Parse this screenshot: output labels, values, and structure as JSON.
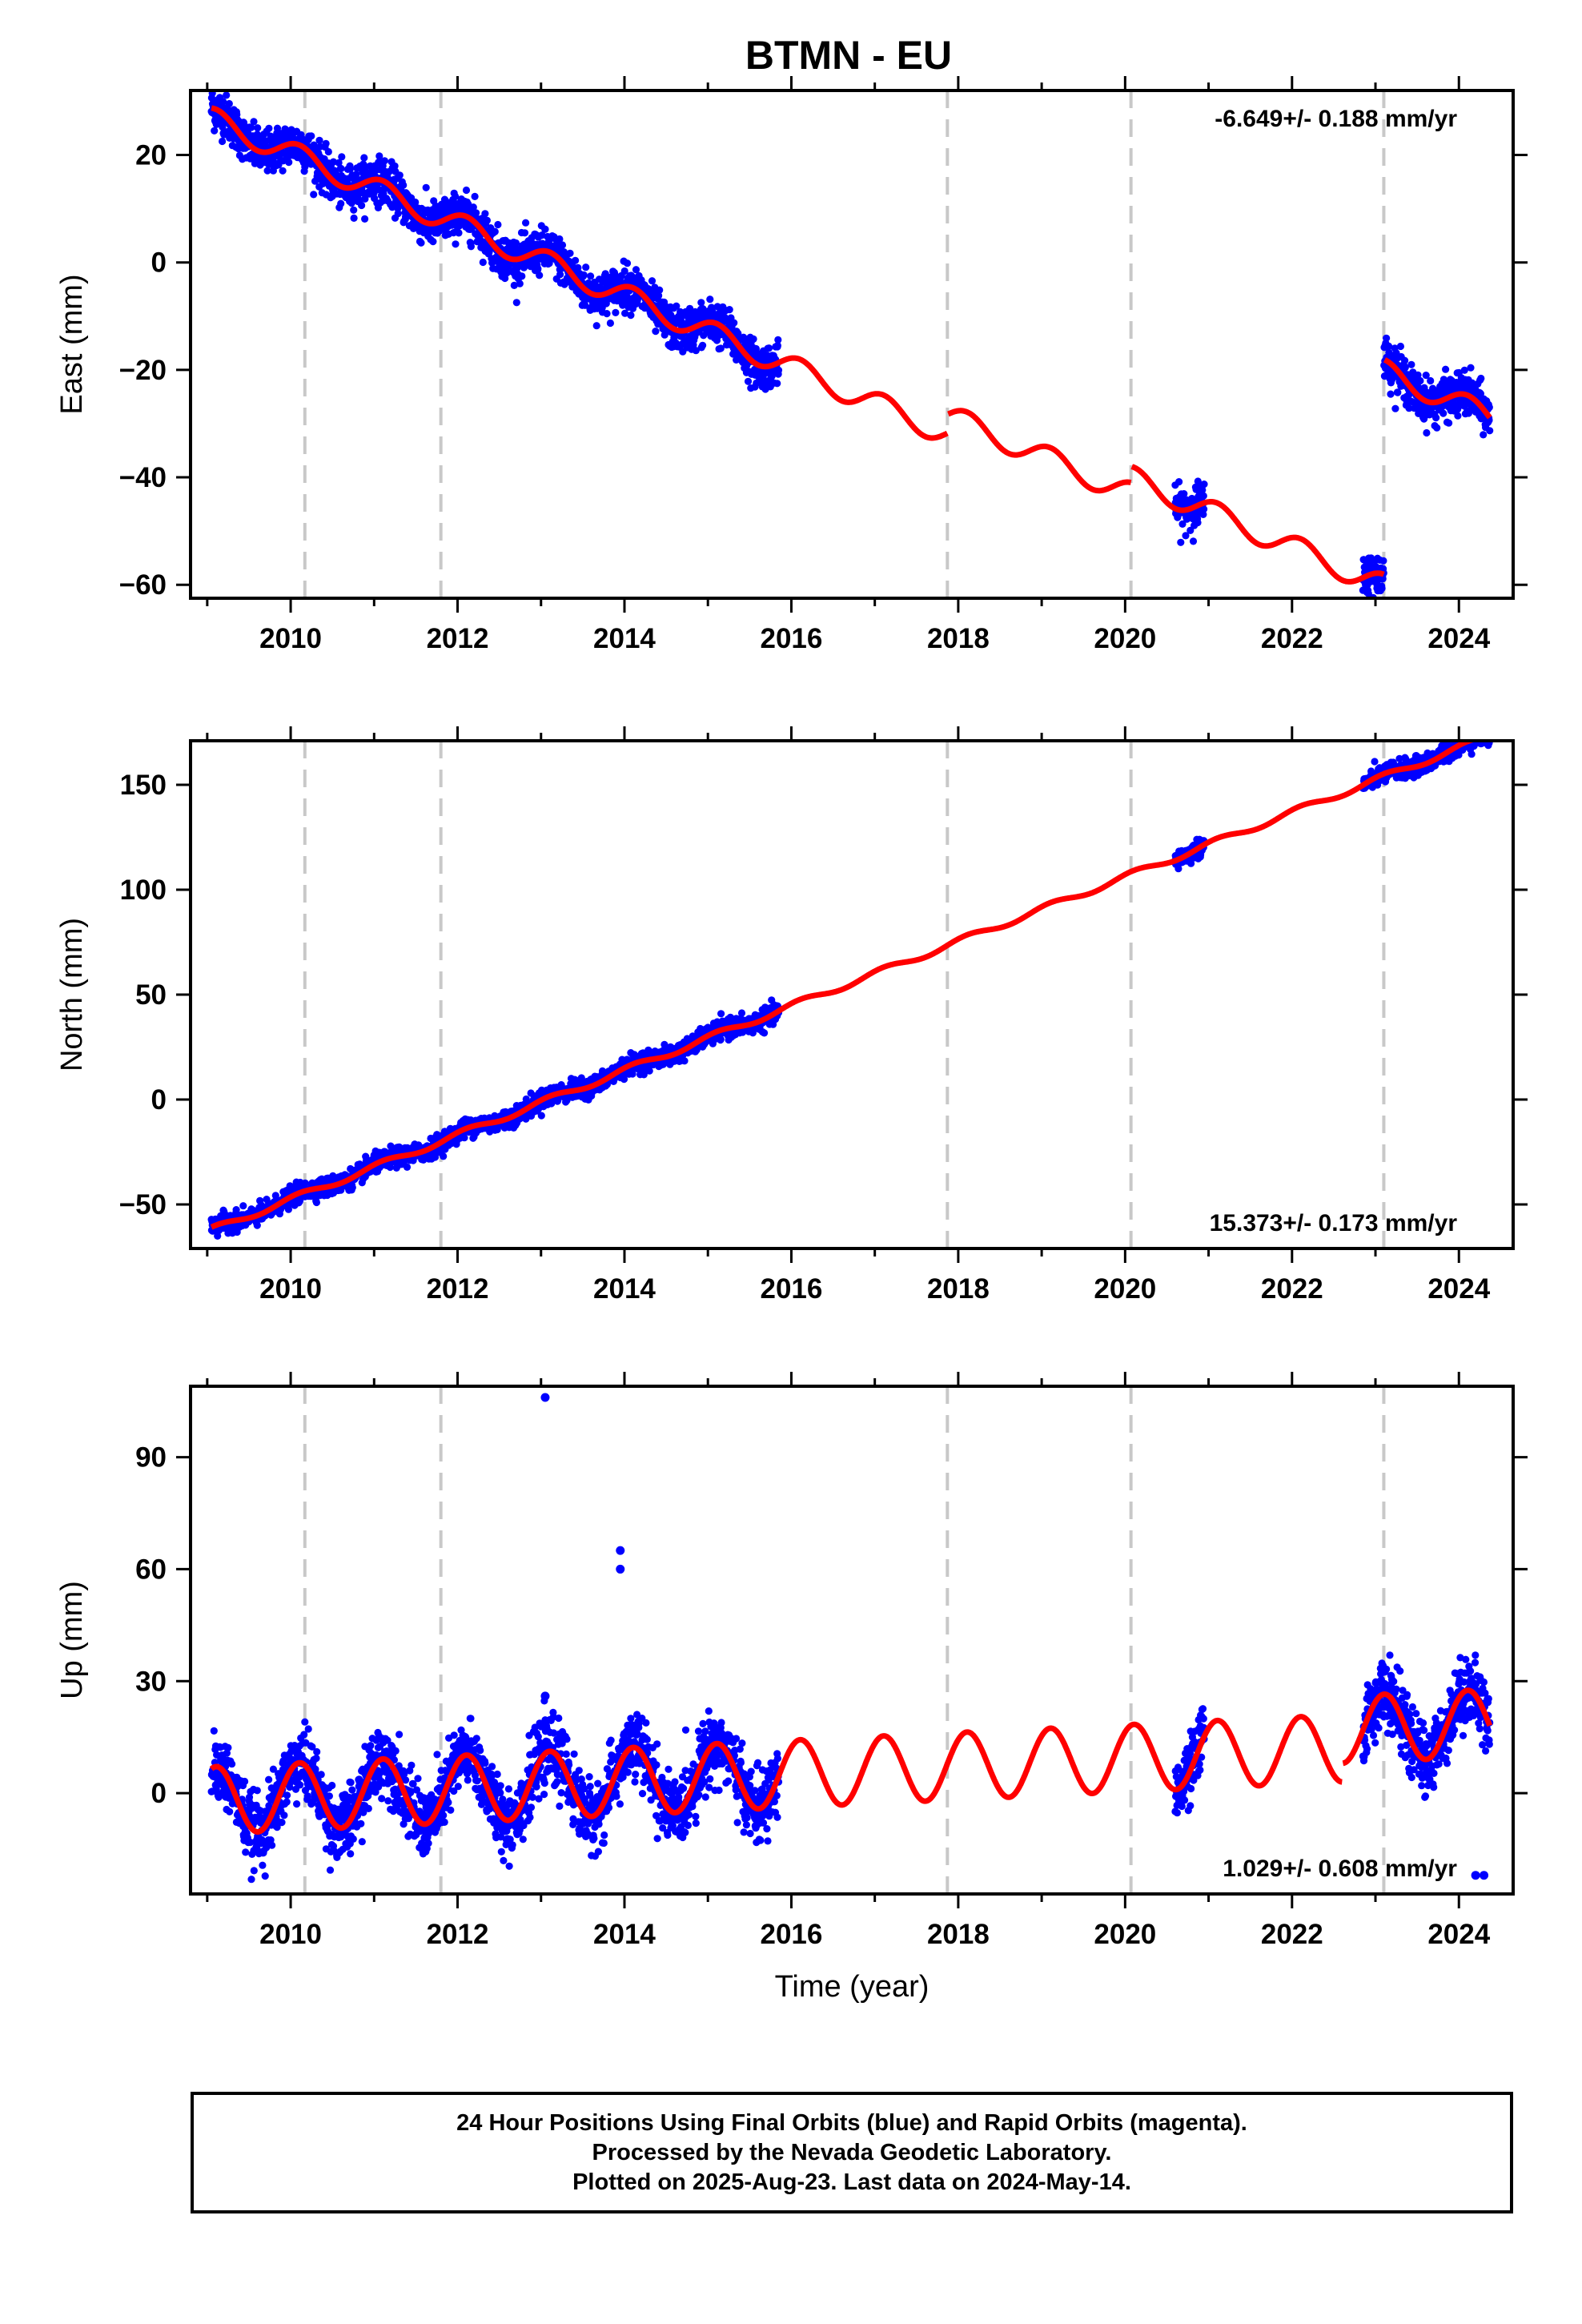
{
  "colors": {
    "final_orbits": "#0000ff",
    "model": "#ff0000",
    "event_line": "#c8c8c8",
    "frame": "#000000"
  },
  "chart_data": [
    {
      "type": "scatter",
      "title": "BTMN - EU",
      "ylabel": "East (mm)",
      "xlabel": "",
      "xlim": [
        2008.8,
        2024.65
      ],
      "ylim": [
        -62.5,
        32
      ],
      "xticks": [
        "2010",
        "2012",
        "2014",
        "2016",
        "2018",
        "2020",
        "2022",
        "2024"
      ],
      "yticks": [
        "20",
        "0",
        "−20",
        "−40",
        "−60"
      ],
      "rate_label": "-6.649+/- 0.188 mm/yr",
      "rate_position": "top-right",
      "event_lines": [
        2010.17,
        2011.8,
        2017.87,
        2020.07,
        2023.1
      ],
      "data_segments": [
        [
          2009.05,
          2015.85
        ],
        [
          2020.6,
          2020.95
        ],
        [
          2022.85,
          2024.37
        ]
      ],
      "model": {
        "velocity": -6.649,
        "intercept_at_2009": 27,
        "annual_amplitude": 2.2,
        "offsets": [
          {
            "time": 2017.87,
            "step": 3.5
          },
          {
            "time": 2020.07,
            "step": 3.0
          },
          {
            "time": 2023.1,
            "step": 40.0
          }
        ]
      },
      "observation_scatter": 2.0,
      "outliers": []
    },
    {
      "type": "scatter",
      "title": "",
      "ylabel": "North (mm)",
      "xlabel": "",
      "xlim": [
        2008.8,
        2024.65
      ],
      "ylim": [
        -71,
        171
      ],
      "xticks": [
        "2010",
        "2012",
        "2014",
        "2016",
        "2018",
        "2020",
        "2022",
        "2024"
      ],
      "yticks": [
        "150",
        "100",
        "50",
        "0",
        "−50"
      ],
      "rate_label": "15.373+/- 0.173 mm/yr",
      "rate_position": "bottom-right",
      "event_lines": [
        2010.17,
        2011.8,
        2017.87,
        2020.07,
        2023.1
      ],
      "data_segments": [
        [
          2009.05,
          2015.85
        ],
        [
          2020.6,
          2020.95
        ],
        [
          2022.85,
          2024.37
        ]
      ],
      "model": {
        "velocity": 15.373,
        "intercept_at_2009": -63,
        "annual_amplitude": 1.5,
        "offsets": []
      },
      "observation_scatter": 2.2,
      "outliers": []
    },
    {
      "type": "scatter",
      "title": "",
      "ylabel": "Up (mm)",
      "xlabel": "Time (year)",
      "xlim": [
        2008.8,
        2024.65
      ],
      "ylim": [
        -27,
        109
      ],
      "xticks": [
        "2010",
        "2012",
        "2014",
        "2016",
        "2018",
        "2020",
        "2022",
        "2024"
      ],
      "yticks": [
        "90",
        "60",
        "30",
        "0"
      ],
      "rate_label": "1.029+/- 0.608 mm/yr",
      "rate_position": "bottom-right",
      "event_lines": [
        2010.17,
        2011.8,
        2017.87,
        2020.07,
        2023.1
      ],
      "data_segments": [
        [
          2009.05,
          2015.85
        ],
        [
          2020.6,
          2020.95
        ],
        [
          2022.85,
          2024.37
        ]
      ],
      "model": {
        "velocity": 1.029,
        "intercept_at_2009": -2,
        "annual_amplitude": 9.0,
        "offsets": [
          {
            "time": 2022.6,
            "step": 5.0
          }
        ]
      },
      "observation_scatter": 4.5,
      "outliers": [
        [
          2013.05,
          106
        ],
        [
          2013.95,
          65
        ],
        [
          2013.95,
          60
        ],
        [
          2013.05,
          26
        ],
        [
          2024.2,
          -22
        ],
        [
          2024.3,
          -22
        ]
      ]
    }
  ],
  "footer": {
    "line1": "24 Hour Positions Using Final Orbits (blue) and Rapid Orbits (magenta).",
    "line2": "Processed by the Nevada Geodetic Laboratory.",
    "line3": "Plotted on 2025-Aug-23. Last data on 2024-May-14."
  }
}
